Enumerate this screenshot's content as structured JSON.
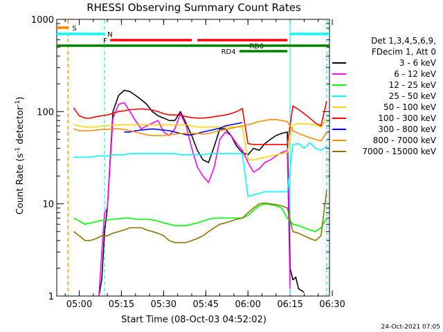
{
  "chart_data": {
    "type": "line",
    "title": "RHESSI Observing Summary Count Rates",
    "xlabel": "Start Time (08-Oct-03 04:52:02)",
    "ylabel_main": "Count Rate (s",
    "ylabel_sup1": "-1",
    "ylabel_mid": " detector",
    "ylabel_sup2": "-1",
    "ylabel_end": ")",
    "y_scale": "log",
    "ylim": [
      1,
      1000
    ],
    "xlim_min": [
      292,
      389
    ],
    "x_ticks": [
      {
        "min": 300,
        "label": "05:00"
      },
      {
        "min": 315,
        "label": "05:15"
      },
      {
        "min": 330,
        "label": "05:30"
      },
      {
        "min": 345,
        "label": "05:45"
      },
      {
        "min": 360,
        "label": "06:00"
      },
      {
        "min": 375,
        "label": "06:15"
      },
      {
        "min": 390,
        "label": "06:30"
      }
    ],
    "y_ticks": [
      {
        "val": 1,
        "label": "1"
      },
      {
        "val": 10,
        "label": "10"
      },
      {
        "val": 100,
        "label": "100"
      },
      {
        "val": 1000,
        "label": "1000"
      }
    ],
    "legend_header": [
      "Det 1,3,4,5,6,9,",
      "FDecim 1, Att 0"
    ],
    "legend_position": "right",
    "series": [
      {
        "name": "3 - 6 keV",
        "color": "#000000",
        "x": [
          298,
          306,
          307,
          308,
          309,
          310,
          312,
          314,
          316,
          318,
          320,
          322,
          324,
          326,
          328,
          330,
          332,
          334,
          336,
          338,
          340,
          342,
          344,
          346,
          348,
          350,
          352,
          354,
          356,
          358,
          360,
          362,
          364,
          366,
          368,
          370,
          372,
          374,
          375,
          376,
          377,
          378,
          380
        ],
        "y": [
          null,
          null,
          1,
          1.5,
          5,
          9,
          100,
          150,
          170,
          165,
          150,
          135,
          120,
          100,
          90,
          85,
          80,
          80,
          100,
          75,
          55,
          38,
          30,
          28,
          42,
          65,
          65,
          55,
          42,
          36,
          34,
          40,
          38,
          45,
          50,
          55,
          58,
          60,
          2,
          1.5,
          1.6,
          1.2,
          1.1
        ]
      },
      {
        "name": "6 - 12 keV",
        "color": "#ff00ff",
        "x": [
          298,
          306,
          307,
          308,
          309,
          310,
          312,
          314,
          316,
          318,
          320,
          322,
          324,
          326,
          328,
          330,
          332,
          334,
          336,
          338,
          340,
          342,
          344,
          346,
          348,
          350,
          352,
          354,
          356,
          358,
          360,
          362,
          364,
          366,
          368,
          370,
          372,
          374,
          375
        ],
        "y": [
          null,
          null,
          1,
          3,
          8,
          9,
          85,
          120,
          125,
          100,
          80,
          65,
          70,
          75,
          80,
          60,
          55,
          65,
          95,
          70,
          40,
          25,
          20,
          17,
          25,
          50,
          60,
          55,
          45,
          38,
          28,
          22,
          24,
          28,
          30,
          33,
          36,
          38,
          1.2
        ]
      },
      {
        "name": "12 - 25 keV",
        "color": "#00ff00",
        "x": [
          298,
          300,
          302,
          304,
          306,
          308,
          310,
          312,
          314,
          316,
          318,
          320,
          322,
          324,
          326,
          328,
          330,
          332,
          334,
          336,
          338,
          340,
          342,
          344,
          346,
          348,
          350,
          352,
          354,
          356,
          358,
          360,
          362,
          364,
          366,
          368,
          370,
          372,
          374,
          376,
          378,
          380,
          382,
          384,
          386,
          388
        ],
        "y": [
          7,
          6.5,
          6,
          6.2,
          6.4,
          6.6,
          6.7,
          6.8,
          6.9,
          7,
          7,
          6.8,
          6.8,
          6.8,
          6.7,
          6.5,
          6.2,
          6,
          5.8,
          5.8,
          5.8,
          6,
          6.2,
          6.5,
          6.8,
          7,
          7,
          7,
          7,
          7,
          7,
          7.5,
          8.5,
          9.5,
          10,
          9.8,
          9.5,
          9,
          7,
          6,
          5.8,
          5.5,
          5.2,
          5,
          5.5,
          7
        ]
      },
      {
        "name": "25 - 50 keV",
        "color": "#00ffff",
        "x": [
          298,
          300,
          302,
          304,
          306,
          308,
          310,
          312,
          314,
          316,
          318,
          320,
          322,
          324,
          326,
          328,
          330,
          332,
          334,
          336,
          338,
          340,
          342,
          344,
          346,
          348,
          350,
          352,
          354,
          356,
          358,
          360,
          362,
          364,
          366,
          368,
          370,
          372,
          374,
          376,
          378,
          380,
          382,
          384,
          386,
          388
        ],
        "y": [
          32,
          32,
          32,
          32,
          33,
          33,
          33,
          34,
          34,
          34,
          35,
          35,
          35,
          35,
          35,
          35,
          35,
          35,
          35,
          34,
          34,
          34,
          34,
          34,
          35,
          35,
          35,
          35,
          35,
          35,
          35,
          12,
          12.5,
          13,
          13.5,
          13.5,
          13.5,
          13.5,
          13.5,
          44,
          45,
          40,
          46,
          40,
          38,
          42
        ]
      },
      {
        "name": "50 - 100 keV",
        "color": "#ffd700",
        "x": [
          298,
          300,
          302,
          304,
          306,
          308,
          310,
          312,
          314,
          316,
          318,
          320,
          322,
          324,
          326,
          328,
          330,
          332,
          334,
          336,
          338,
          340,
          342,
          344,
          346,
          348,
          350,
          352,
          354,
          356,
          358,
          360,
          362,
          364,
          366,
          368,
          370,
          372,
          374,
          376,
          378,
          380,
          382,
          384,
          386,
          388
        ],
        "y": [
          72,
          70,
          68,
          68,
          68,
          70,
          70,
          71,
          72,
          72,
          72,
          72,
          72,
          72,
          72,
          72,
          72,
          72,
          72,
          72,
          72,
          70,
          68,
          68,
          68,
          68,
          68,
          68,
          68,
          68,
          68,
          30,
          30,
          31,
          32,
          33,
          34,
          35,
          36,
          72,
          74,
          74,
          73,
          72,
          68,
          85
        ]
      },
      {
        "name": "100 - 300 keV",
        "color": "#ff0000",
        "x": [
          298,
          300,
          302,
          304,
          306,
          308,
          310,
          312,
          314,
          316,
          318,
          320,
          322,
          324,
          326,
          328,
          330,
          332,
          334,
          336,
          338,
          340,
          342,
          344,
          346,
          348,
          350,
          352,
          354,
          356,
          358,
          360,
          362,
          364,
          366,
          368,
          370,
          372,
          374,
          376,
          378,
          380,
          382,
          384,
          386,
          388
        ],
        "y": [
          110,
          90,
          85,
          85,
          88,
          90,
          92,
          96,
          100,
          102,
          105,
          106,
          107,
          106,
          104,
          100,
          95,
          92,
          92,
          92,
          88,
          86,
          85,
          85,
          86,
          88,
          90,
          92,
          95,
          100,
          108,
          45,
          44,
          44,
          44,
          44,
          44,
          44,
          44,
          115,
          105,
          95,
          85,
          75,
          70,
          130
        ]
      },
      {
        "name": "300 - 800 keV",
        "color": "#0000ff",
        "x": [
          298,
          300,
          302,
          304,
          306,
          308,
          310,
          312,
          314,
          316,
          318,
          320,
          322,
          324,
          326,
          328,
          330,
          332,
          334,
          336,
          338,
          340,
          342,
          344,
          346,
          348,
          350,
          352,
          354,
          356,
          358,
          360,
          362,
          364,
          366,
          368,
          370,
          372,
          374,
          376,
          378,
          380,
          382,
          384,
          386,
          388
        ],
        "y": [
          null,
          null,
          null,
          null,
          null,
          null,
          null,
          null,
          null,
          60,
          60,
          62,
          63,
          64,
          65,
          64,
          63,
          62,
          60,
          58,
          56,
          56,
          58,
          60,
          62,
          64,
          66,
          70,
          72,
          74,
          76,
          null,
          null,
          null,
          null,
          null,
          null,
          null,
          null,
          null,
          null,
          null,
          null,
          null,
          null,
          null
        ]
      },
      {
        "name": "800 - 7000 keV",
        "color": "#ff8c00",
        "x": [
          298,
          300,
          302,
          304,
          306,
          308,
          310,
          312,
          314,
          316,
          318,
          320,
          322,
          324,
          326,
          328,
          330,
          332,
          334,
          336,
          338,
          340,
          342,
          344,
          346,
          348,
          350,
          352,
          354,
          356,
          358,
          360,
          362,
          364,
          366,
          368,
          370,
          372,
          374,
          376,
          378,
          380,
          382,
          384,
          386,
          388
        ],
        "y": [
          65,
          62,
          62,
          62,
          63,
          64,
          64,
          65,
          65,
          64,
          62,
          60,
          58,
          56,
          55,
          55,
          55,
          56,
          57,
          58,
          58,
          58,
          58,
          57,
          58,
          60,
          62,
          64,
          66,
          68,
          70,
          72,
          75,
          78,
          80,
          82,
          82,
          80,
          78,
          62,
          58,
          55,
          52,
          50,
          48,
          60
        ]
      },
      {
        "name": "7000 - 15000 keV",
        "color": "#8b7500",
        "x": [
          298,
          300,
          302,
          304,
          306,
          308,
          310,
          312,
          314,
          316,
          318,
          320,
          322,
          324,
          326,
          328,
          330,
          332,
          334,
          336,
          338,
          340,
          342,
          344,
          346,
          348,
          350,
          352,
          354,
          356,
          358,
          360,
          362,
          364,
          366,
          368,
          370,
          372,
          374,
          376,
          378,
          380,
          382,
          384,
          386,
          388
        ],
        "y": [
          5,
          4.5,
          4,
          4,
          4.2,
          4.5,
          4.5,
          4.8,
          5,
          5.2,
          5.5,
          5.5,
          5.5,
          5.2,
          5,
          4.8,
          4.5,
          4,
          3.8,
          3.8,
          3.8,
          4,
          4.2,
          4.5,
          5,
          5.5,
          6,
          6.2,
          6.5,
          6.8,
          7,
          8,
          9,
          10,
          10.2,
          10,
          9.8,
          9.5,
          9,
          5,
          4.8,
          4.5,
          4.2,
          4,
          4.5,
          14
        ]
      }
    ],
    "orbit_bars": [
      {
        "label": "S",
        "color": "#ff8000",
        "row": 0,
        "segments": [
          [
            292,
            296
          ]
        ],
        "label_min": 297.5
      },
      {
        "label": "N",
        "color": "#00ffff",
        "row": 1,
        "segments": [
          [
            292,
            309
          ],
          [
            375,
            389
          ]
        ],
        "label_min": 310
      },
      {
        "label": "F",
        "color": "#ff0000",
        "row": 2,
        "segments": [
          [
            311,
            340
          ],
          [
            342,
            374
          ]
        ],
        "label_min": 308.5
      },
      {
        "label": "RD0",
        "color": "#ff0000",
        "row": 3,
        "segments": [],
        "label_min": 360.5
      },
      {
        "label": "",
        "color": "#008000",
        "row": 4,
        "segments": [
          [
            292,
            389
          ]
        ],
        "label_min": 0
      },
      {
        "label": "RD4",
        "color": "#008000",
        "row": 5,
        "segments": [
          [
            357,
            374
          ]
        ],
        "label_min": 350.5
      }
    ],
    "vlines": [
      {
        "min": 296,
        "color": "#ff8000",
        "dashed": true
      },
      {
        "min": 309,
        "color": "#00ffff",
        "dashed": true
      },
      {
        "min": 375,
        "color": "#00ffff",
        "dashed": false
      },
      {
        "min": 388,
        "color": "#00ffff",
        "dashed": true
      }
    ],
    "grid": false,
    "footer_date": "24-Oct-2021 07:05"
  }
}
